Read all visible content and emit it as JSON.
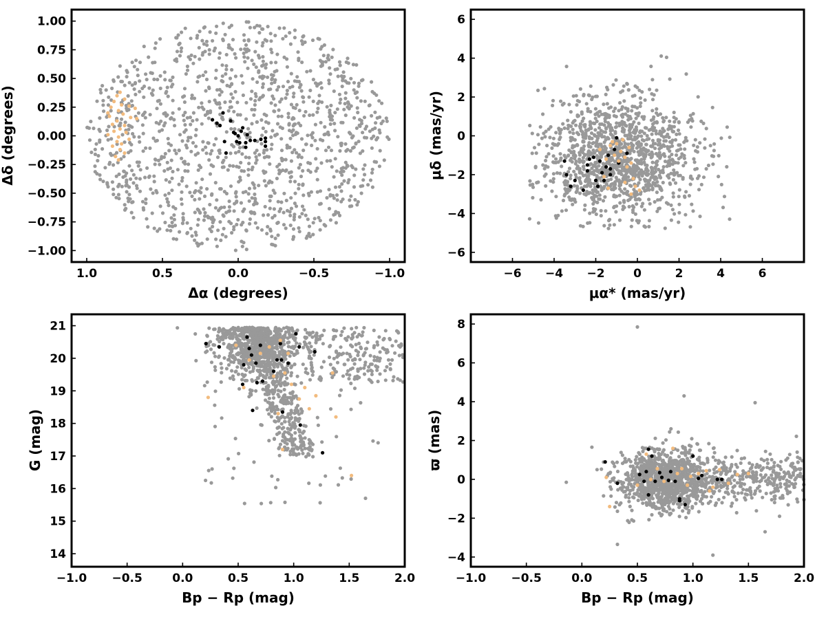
{
  "chart_data": [
    {
      "type": "scatter",
      "id": "sky",
      "xlabel": "Δα (degrees)",
      "ylabel": "Δδ (degrees)",
      "xlim": [
        1.1,
        -1.1
      ],
      "ylim": [
        -1.1,
        1.1
      ],
      "x_ticks": [
        1.0,
        0.5,
        0.0,
        -0.5,
        -1.0
      ],
      "x_tick_labels": [
        "1.0",
        "0.5",
        "0.0",
        "−0.5",
        "−1.0"
      ],
      "y_ticks": [
        -1.0,
        -0.75,
        -0.5,
        -0.25,
        0.0,
        0.25,
        0.5,
        0.75,
        1.0
      ],
      "y_tick_labels": [
        "−1.00",
        "−0.75",
        "−0.50",
        "−0.25",
        "0.00",
        "0.25",
        "0.50",
        "0.75",
        "1.00"
      ],
      "grid": false,
      "field_gray": {
        "dist": "disk",
        "n": 1300,
        "cx": 0.0,
        "cy": 0.0,
        "rx": 1.0,
        "ry": 1.0,
        "seed": 11,
        "color": "#999999"
      },
      "series": [
        {
          "color": "#000000",
          "points": [
            [
              0.17,
              0.14
            ],
            [
              0.14,
              0.11
            ],
            [
              0.12,
              0.09
            ],
            [
              0.1,
              0.2
            ],
            [
              0.09,
              -0.05
            ],
            [
              0.08,
              -0.15
            ],
            [
              0.05,
              0.13
            ],
            [
              0.03,
              0.03
            ],
            [
              0.01,
              -0.05
            ],
            [
              0.0,
              0.0
            ],
            [
              -0.01,
              -0.06
            ],
            [
              -0.02,
              0.04
            ],
            [
              -0.03,
              0.07
            ],
            [
              -0.05,
              -0.06
            ],
            [
              -0.06,
              0.01
            ],
            [
              -0.08,
              -0.04
            ],
            [
              -0.11,
              -0.04
            ],
            [
              -0.15,
              -0.03
            ],
            [
              -0.18,
              -0.02
            ],
            [
              -0.18,
              -0.05
            ],
            [
              -0.18,
              -0.09
            ],
            [
              -0.05,
              -0.1
            ],
            [
              0.02,
              0.02
            ]
          ]
        },
        {
          "color": "#f2bb7e",
          "points": [
            [
              0.78,
              0.38
            ],
            [
              0.8,
              0.35
            ],
            [
              0.75,
              0.32
            ],
            [
              0.82,
              0.3
            ],
            [
              0.77,
              0.27
            ],
            [
              0.84,
              0.25
            ],
            [
              0.72,
              0.26
            ],
            [
              0.68,
              0.24
            ],
            [
              0.79,
              0.22
            ],
            [
              0.76,
              0.19
            ],
            [
              0.85,
              0.17
            ],
            [
              0.71,
              0.16
            ],
            [
              0.67,
              0.15
            ],
            [
              0.8,
              0.13
            ],
            [
              0.83,
              0.1
            ],
            [
              0.75,
              0.09
            ],
            [
              0.78,
              0.06
            ],
            [
              0.82,
              0.04
            ],
            [
              0.74,
              0.03
            ],
            [
              0.86,
              0.01
            ],
            [
              0.79,
              -0.01
            ],
            [
              0.72,
              -0.03
            ],
            [
              0.8,
              -0.05
            ],
            [
              0.77,
              -0.07
            ],
            [
              0.83,
              -0.09
            ],
            [
              0.78,
              -0.12
            ],
            [
              0.75,
              -0.15
            ],
            [
              0.81,
              -0.18
            ],
            [
              0.79,
              -0.21
            ],
            [
              0.86,
              0.2
            ]
          ]
        }
      ]
    },
    {
      "type": "scatter",
      "id": "pm",
      "xlabel": "μα* (mas/yr)",
      "ylabel": "μδ (mas/yr)",
      "xlim": [
        -8,
        8
      ],
      "ylim": [
        -6.5,
        6.5
      ],
      "x_ticks": [
        -6,
        -4,
        -2,
        0,
        2,
        4,
        6
      ],
      "x_tick_labels": [
        "−6",
        "−4",
        "−2",
        "0",
        "2",
        "4",
        "6"
      ],
      "y_ticks": [
        -6,
        -4,
        -2,
        0,
        2,
        4,
        6
      ],
      "y_tick_labels": [
        "−6",
        "−4",
        "−2",
        "0",
        "2",
        "4",
        "6"
      ],
      "grid": false,
      "field_gray": {
        "dist": "gauss",
        "n": 1300,
        "cx": -1.0,
        "cy": -1.2,
        "sx": 1.9,
        "sy": 1.6,
        "xmin": -5.2,
        "xmax": 5.0,
        "ymin": -4.8,
        "ymax": 4.4,
        "seed": 23,
        "color": "#999999"
      },
      "series": [
        {
          "color": "#000000",
          "points": [
            [
              -3.5,
              -1.3
            ],
            [
              -3.4,
              -2.0
            ],
            [
              -3.2,
              -2.6
            ],
            [
              -3.0,
              -2.3
            ],
            [
              -2.6,
              -2.8
            ],
            [
              -2.4,
              -1.5
            ],
            [
              -2.3,
              -1.2
            ],
            [
              -2.1,
              -1.1
            ],
            [
              -2.0,
              -2.3
            ],
            [
              -1.9,
              -2.6
            ],
            [
              -1.8,
              -1.3
            ],
            [
              -1.7,
              -1.9
            ],
            [
              -1.6,
              -2.3
            ],
            [
              -1.5,
              -1.6
            ],
            [
              -1.4,
              -1.0
            ],
            [
              -1.3,
              -1.7
            ],
            [
              -1.1,
              -0.7
            ],
            [
              -1.0,
              -0.1
            ],
            [
              -0.9,
              -1.4
            ],
            [
              -0.5,
              -0.9
            ],
            [
              -1.3,
              -2.0
            ],
            [
              -2.4,
              -1.8
            ]
          ]
        },
        {
          "color": "#f2bb7e",
          "points": [
            [
              -1.8,
              -0.7
            ],
            [
              -1.5,
              -1.2
            ],
            [
              -1.3,
              -0.5
            ],
            [
              -1.1,
              -1.0
            ],
            [
              -1.0,
              -0.4
            ],
            [
              -0.9,
              -1.3
            ],
            [
              -0.8,
              -0.8
            ],
            [
              -0.7,
              -0.2
            ],
            [
              -0.6,
              -1.1
            ],
            [
              -0.5,
              -1.6
            ],
            [
              -0.4,
              -0.6
            ],
            [
              -0.3,
              -1.4
            ],
            [
              -0.2,
              -2.2
            ],
            [
              -0.1,
              -2.6
            ],
            [
              -1.6,
              -2.1
            ],
            [
              -1.4,
              -2.7
            ],
            [
              -0.6,
              -2.4
            ],
            [
              -0.3,
              -3.0
            ],
            [
              0.1,
              -2.8
            ],
            [
              -1.2,
              -0.3
            ]
          ]
        }
      ]
    },
    {
      "type": "scatter",
      "id": "cmd",
      "xlabel": "Bp − Rp (mag)",
      "ylabel": "G (mag)",
      "xlim": [
        -1.0,
        2.0
      ],
      "ylim": [
        13.6,
        21.35
      ],
      "x_ticks": [
        -1.0,
        -0.5,
        0.0,
        0.5,
        1.0,
        1.5,
        2.0
      ],
      "x_tick_labels": [
        "−1.0",
        "−0.5",
        "0.0",
        "0.5",
        "1.0",
        "1.5",
        "2.0"
      ],
      "y_ticks": [
        14,
        15,
        16,
        17,
        18,
        19,
        20,
        21
      ],
      "y_tick_labels": [
        "14",
        "15",
        "16",
        "17",
        "18",
        "19",
        "20",
        "21"
      ],
      "grid": false,
      "field_gray": {
        "dist": "cmd",
        "n": 1350,
        "seed": 37,
        "color": "#999999"
      },
      "series": [
        {
          "color": "#000000",
          "points": [
            [
              0.21,
              20.45
            ],
            [
              0.33,
              20.35
            ],
            [
              0.58,
              20.65
            ],
            [
              0.6,
              20.3
            ],
            [
              0.62,
              20.1
            ],
            [
              0.66,
              19.85
            ],
            [
              0.55,
              19.8
            ],
            [
              0.7,
              20.4
            ],
            [
              0.88,
              20.45
            ],
            [
              1.02,
              20.75
            ],
            [
              1.05,
              20.35
            ],
            [
              1.19,
              20.2
            ],
            [
              0.85,
              19.95
            ],
            [
              0.89,
              19.95
            ],
            [
              0.95,
              19.85
            ],
            [
              0.54,
              19.2
            ],
            [
              0.67,
              19.25
            ],
            [
              0.72,
              19.3
            ],
            [
              0.82,
              19.6
            ],
            [
              0.63,
              18.4
            ],
            [
              0.9,
              18.35
            ],
            [
              1.06,
              17.95
            ],
            [
              1.26,
              17.1
            ]
          ]
        },
        {
          "color": "#f2bb7e",
          "points": [
            [
              0.23,
              18.8
            ],
            [
              0.48,
              20.4
            ],
            [
              0.55,
              19.1
            ],
            [
              0.6,
              19.95
            ],
            [
              0.7,
              20.15
            ],
            [
              0.78,
              20.35
            ],
            [
              0.82,
              19.45
            ],
            [
              0.88,
              20.55
            ],
            [
              0.92,
              19.55
            ],
            [
              0.95,
              20.15
            ],
            [
              0.98,
              19.2
            ],
            [
              1.05,
              18.75
            ],
            [
              1.1,
              19.1
            ],
            [
              1.14,
              18.45
            ],
            [
              0.9,
              17.2
            ],
            [
              1.2,
              18.85
            ],
            [
              1.35,
              19.55
            ],
            [
              1.38,
              18.2
            ],
            [
              1.52,
              16.4
            ],
            [
              0.86,
              18.3
            ]
          ]
        }
      ]
    },
    {
      "type": "scatter",
      "id": "plx",
      "xlabel": "Bp − Rp (mag)",
      "ylabel": "ϖ (mas)",
      "xlim": [
        -1.0,
        2.0
      ],
      "ylim": [
        -4.5,
        8.5
      ],
      "x_ticks": [
        -1.0,
        -0.5,
        0.0,
        0.5,
        1.0,
        1.5,
        2.0
      ],
      "x_tick_labels": [
        "−1.0",
        "−0.5",
        "0.0",
        "0.5",
        "1.0",
        "1.5",
        "2.0"
      ],
      "y_ticks": [
        -4,
        -2,
        0,
        2,
        4,
        6,
        8
      ],
      "y_tick_labels": [
        "−4",
        "−2",
        "0",
        "2",
        "4",
        "6",
        "8"
      ],
      "grid": false,
      "field_gray": {
        "dist": "plx",
        "n": 1400,
        "seed": 53,
        "color": "#999999"
      },
      "extra_gray": [
        [
          0.5,
          7.85
        ],
        [
          -0.14,
          -0.15
        ],
        [
          0.32,
          -3.35
        ],
        [
          1.18,
          -3.9
        ],
        [
          1.65,
          -2.7
        ],
        [
          1.78,
          -1.9
        ],
        [
          0.92,
          4.3
        ],
        [
          1.56,
          3.95
        ]
      ],
      "series": [
        {
          "color": "#000000",
          "points": [
            [
              0.21,
              0.9
            ],
            [
              0.32,
              -0.2
            ],
            [
              0.52,
              0.25
            ],
            [
              0.56,
              -0.1
            ],
            [
              0.58,
              0.4
            ],
            [
              0.6,
              1.55
            ],
            [
              0.6,
              -0.8
            ],
            [
              0.63,
              1.2
            ],
            [
              0.66,
              -0.1
            ],
            [
              0.7,
              0.35
            ],
            [
              0.72,
              0.1
            ],
            [
              0.78,
              -0.05
            ],
            [
              0.8,
              0.4
            ],
            [
              0.84,
              -0.1
            ],
            [
              0.88,
              -1.0
            ],
            [
              0.88,
              -1.1
            ],
            [
              0.93,
              -1.3
            ],
            [
              1.0,
              1.2
            ],
            [
              1.05,
              0.05
            ],
            [
              1.08,
              0.2
            ],
            [
              1.22,
              0.0
            ],
            [
              1.26,
              0.0
            ]
          ]
        },
        {
          "color": "#f2bb7e",
          "points": [
            [
              0.22,
              0.1
            ],
            [
              0.25,
              -1.4
            ],
            [
              0.5,
              -0.3
            ],
            [
              0.58,
              1.3
            ],
            [
              0.62,
              0.0
            ],
            [
              0.68,
              0.55
            ],
            [
              0.74,
              -0.1
            ],
            [
              0.82,
              1.6
            ],
            [
              0.86,
              0.3
            ],
            [
              0.9,
              0.55
            ],
            [
              0.95,
              -0.3
            ],
            [
              0.98,
              0.15
            ],
            [
              1.05,
              0.3
            ],
            [
              1.12,
              0.45
            ],
            [
              1.18,
              -0.4
            ],
            [
              1.24,
              0.5
            ],
            [
              1.32,
              -0.2
            ],
            [
              1.4,
              0.25
            ],
            [
              1.5,
              0.3
            ],
            [
              1.15,
              -0.6
            ]
          ]
        }
      ]
    }
  ]
}
